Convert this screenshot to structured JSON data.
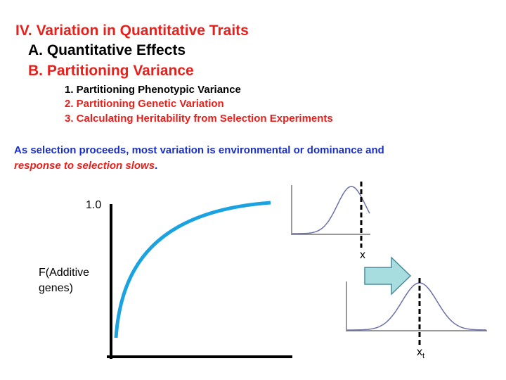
{
  "header": {
    "title": "IV. Variation in Quantitative Traits"
  },
  "outline": [
    {
      "label": "A. Quantitative Effects"
    },
    {
      "label": "B. Partitioning Variance",
      "items": [
        "1. Partitioning Phenotypic Variance",
        "2. Partitioning Genetic Variation",
        "3. Calculating Heritability from Selection Experiments"
      ]
    }
  ],
  "statement": {
    "text": "As selection proceeds, most variation is environmental or dominance and",
    "emphasis": "response to selection slows",
    "end": "."
  },
  "figure": {
    "y_mark": "1.0",
    "y_label": [
      "F(Additive",
      "genes)"
    ],
    "x_before": "x",
    "x_after": "x",
    "x_after_subscript": "t"
  }
}
